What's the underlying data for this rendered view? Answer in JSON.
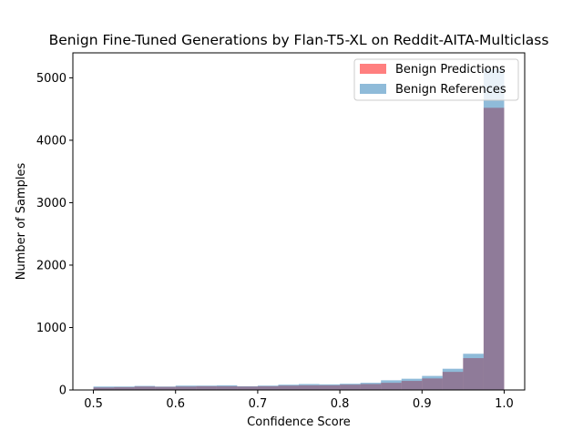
{
  "chart_data": {
    "type": "bar",
    "title": "Benign Fine-Tuned Generations by Flan-T5-XL on Reddit-AITA-Multiclass",
    "xlabel": "Confidence Score",
    "ylabel": "Number of Samples",
    "xlim": [
      0.475,
      1.025
    ],
    "ylim": [
      0,
      5400
    ],
    "grid": false,
    "legend_position": "top-right",
    "x_ticks": [
      0.5,
      0.6,
      0.7,
      0.8,
      0.9,
      1.0
    ],
    "x_tick_labels": [
      "0.5",
      "0.6",
      "0.7",
      "0.8",
      "0.9",
      "1.0"
    ],
    "y_ticks": [
      0,
      1000,
      2000,
      3000,
      4000,
      5000
    ],
    "y_tick_labels": [
      "0",
      "1000",
      "2000",
      "3000",
      "4000",
      "5000"
    ],
    "bin_edges": [
      0.5,
      0.525,
      0.55,
      0.575,
      0.6,
      0.625,
      0.65,
      0.675,
      0.7,
      0.725,
      0.75,
      0.775,
      0.8,
      0.825,
      0.85,
      0.875,
      0.9,
      0.925,
      0.95,
      0.975,
      1.0
    ],
    "series": [
      {
        "name": "Benign Predictions",
        "color": "#ff0000",
        "opacity": 0.5,
        "values": [
          40,
          45,
          55,
          50,
          55,
          60,
          60,
          55,
          60,
          70,
          75,
          75,
          85,
          95,
          115,
          145,
          185,
          290,
          510,
          4520
        ]
      },
      {
        "name": "Benign References",
        "color": "#1f77b4",
        "opacity": 0.5,
        "values": [
          55,
          55,
          65,
          55,
          70,
          70,
          75,
          60,
          70,
          85,
          95,
          90,
          100,
          115,
          155,
          180,
          225,
          340,
          580,
          5140
        ]
      }
    ]
  }
}
